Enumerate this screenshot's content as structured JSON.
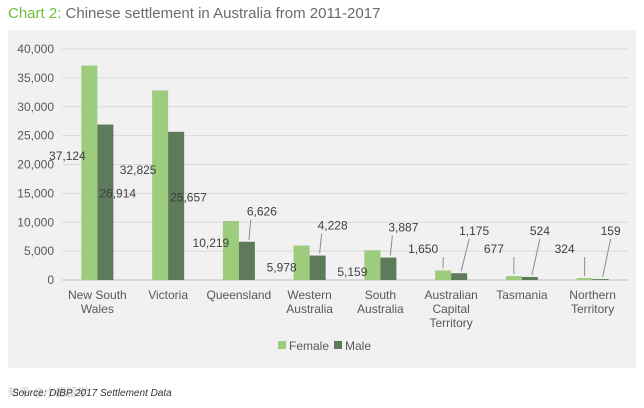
{
  "title": {
    "prefix": "Chart 2:",
    "text": " Chinese settlement in Australia from 2011-2017"
  },
  "source": "Source: DIBP 2017 Settlement Data",
  "watermark": "知乎 @小鹿留学",
  "colors": {
    "female": "#9ccc7c",
    "male": "#5d7a5b",
    "panel": "#f1f1f1",
    "grid": "#d9d9d9",
    "title_accent": "#6dbf3f"
  },
  "chart_data": {
    "type": "bar",
    "categories": [
      [
        "New South",
        "Wales"
      ],
      [
        "Victoria"
      ],
      [
        "Queensland"
      ],
      [
        "Western",
        "Australia"
      ],
      [
        "South",
        "Australia"
      ],
      [
        "Australian",
        "Capital",
        "Territory"
      ],
      [
        "Tasmania"
      ],
      [
        "Northern",
        "Territory"
      ]
    ],
    "series": [
      {
        "name": "Female",
        "color": "#9ccc7c",
        "values": [
          37124,
          32825,
          10219,
          5978,
          5159,
          1650,
          677,
          324
        ],
        "labels": [
          "37,124",
          "32,825",
          "10,219",
          "5,978",
          "5,159",
          "1,650",
          "677",
          "324"
        ]
      },
      {
        "name": "Male",
        "color": "#5d7a5b",
        "values": [
          26914,
          25657,
          6626,
          4228,
          3887,
          1175,
          524,
          159
        ],
        "labels": [
          "26,914",
          "25,657",
          "6,626",
          "4,228",
          "3,887",
          "1,175",
          "524",
          "159"
        ]
      }
    ],
    "ylim": [
      0,
      40000
    ],
    "yticks": [
      0,
      5000,
      10000,
      15000,
      20000,
      25000,
      30000,
      35000,
      40000
    ],
    "ytick_labels": [
      "0",
      "5,000",
      "10,000",
      "15,000",
      "20,000",
      "25,000",
      "30,000",
      "35,000",
      "40,000"
    ],
    "grid": true,
    "legend_position": "bottom-center"
  }
}
